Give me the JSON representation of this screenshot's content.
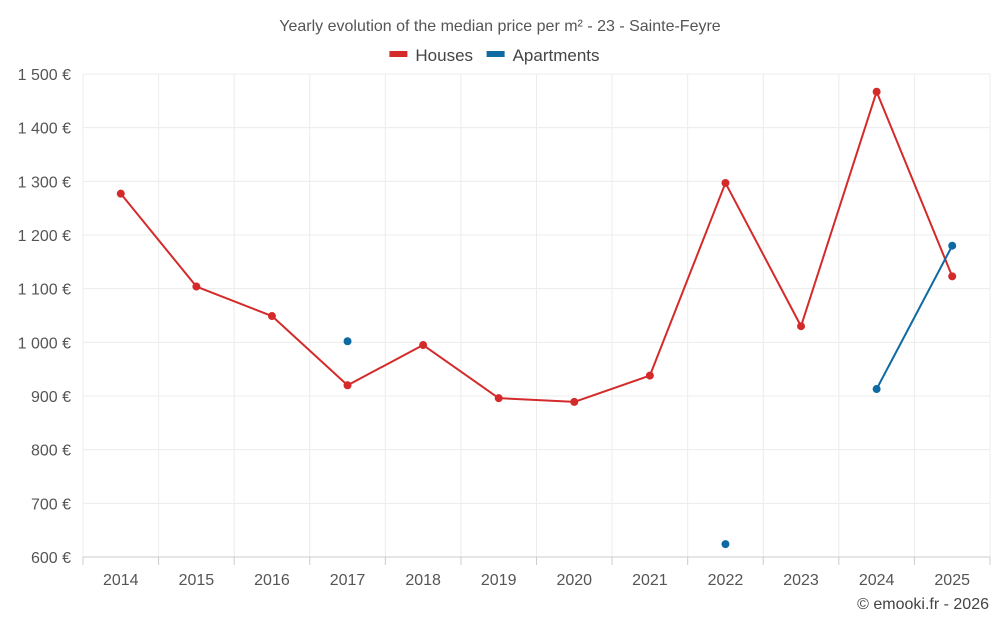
{
  "chart_data": {
    "type": "line",
    "title": "Yearly evolution of the median price per m² - 23 - Sainte-Feyre",
    "xlabel": "",
    "ylabel": "",
    "categories": [
      "2014",
      "2015",
      "2016",
      "2017",
      "2018",
      "2019",
      "2020",
      "2021",
      "2022",
      "2023",
      "2024",
      "2025"
    ],
    "ylim": [
      600,
      1500
    ],
    "yticks": [
      600,
      700,
      800,
      900,
      1000,
      1100,
      1200,
      1300,
      1400,
      1500
    ],
    "ytick_labels": [
      "600 €",
      "700 €",
      "800 €",
      "900 €",
      "1 000 €",
      "1 100 €",
      "1 200 €",
      "1 300 €",
      "1 400 €",
      "1 500 €"
    ],
    "grid": true,
    "legend_position": "top-center",
    "series": [
      {
        "name": "Houses",
        "color": "#d42a2a",
        "values": [
          1277,
          1104,
          1049,
          920,
          995,
          896,
          889,
          938,
          1297,
          1030,
          1467,
          1123
        ]
      },
      {
        "name": "Apartments",
        "color": "#0e6aa3",
        "values": [
          null,
          null,
          null,
          1002,
          null,
          null,
          null,
          null,
          624,
          null,
          913,
          1180
        ]
      }
    ]
  },
  "credit": "© emooki.fr - 2026"
}
